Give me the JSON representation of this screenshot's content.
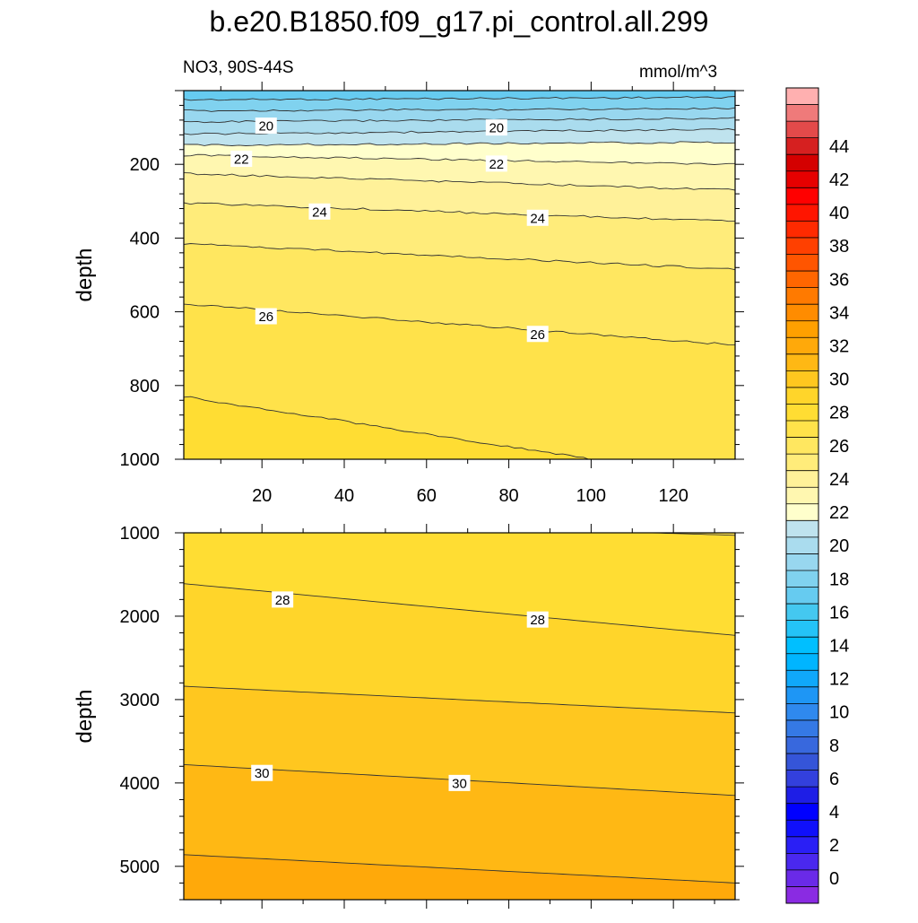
{
  "title": "b.e20.B1850.f09_g17.pi_control.all.299",
  "subtitle_left": "NO3, 90S-44S",
  "subtitle_right": "mmol/m^3",
  "chart_data": [
    {
      "type": "contour",
      "panel": "upper",
      "variable": "NO3",
      "units": "mmol/m^3",
      "xlabel": "",
      "ylabel": "depth",
      "xlim": [
        1,
        135
      ],
      "ylim": [
        1000,
        0
      ],
      "x_ticks": [
        20,
        40,
        60,
        80,
        100,
        120
      ],
      "y_ticks": [
        200,
        400,
        600,
        800,
        1000
      ],
      "contours": [
        {
          "level": 17,
          "depth_left": 25,
          "depth_right": 18
        },
        {
          "level": 18,
          "depth_left": 55,
          "depth_right": 48
        },
        {
          "level": 19,
          "depth_left": 85,
          "depth_right": 75
        },
        {
          "level": 20,
          "depth_left": 118,
          "depth_right": 105
        },
        {
          "level": 21,
          "depth_left": 148,
          "depth_right": 140
        },
        {
          "level": 22,
          "depth_left": 175,
          "depth_right": 200
        },
        {
          "level": 23,
          "depth_left": 225,
          "depth_right": 270
        },
        {
          "level": 24,
          "depth_left": 305,
          "depth_right": 355
        },
        {
          "level": 25,
          "depth_left": 415,
          "depth_right": 485
        },
        {
          "level": 26,
          "depth_left": 578,
          "depth_right": 690
        },
        {
          "level": 27,
          "depth_left": 830,
          "depth_right": 1060
        }
      ],
      "contour_labels": [
        {
          "text": "20",
          "x": 21,
          "depth": 95
        },
        {
          "text": "20",
          "x": 77,
          "depth": 100
        },
        {
          "text": "22",
          "x": 15,
          "depth": 185
        },
        {
          "text": "22",
          "x": 77,
          "depth": 198
        },
        {
          "text": "24",
          "x": 34,
          "depth": 328
        },
        {
          "text": "24",
          "x": 87,
          "depth": 345
        },
        {
          "text": "26",
          "x": 21,
          "depth": 612
        },
        {
          "text": "26",
          "x": 87,
          "depth": 660
        }
      ]
    },
    {
      "type": "contour",
      "panel": "lower",
      "variable": "NO3",
      "units": "mmol/m^3",
      "xlabel": "",
      "ylabel": "depth",
      "xlim": [
        1,
        135
      ],
      "ylim": [
        5400,
        1000
      ],
      "y_ticks": [
        1000,
        2000,
        3000,
        4000,
        5000
      ],
      "contours": [
        {
          "level": 27,
          "depth_left": 830,
          "depth_right": 1030
        },
        {
          "level": 28,
          "depth_left": 1610,
          "depth_right": 2230
        },
        {
          "level": 29,
          "depth_left": 2840,
          "depth_right": 3160
        },
        {
          "level": 30,
          "depth_left": 3780,
          "depth_right": 4150
        },
        {
          "level": 31,
          "depth_left": 4860,
          "depth_right": 5200
        }
      ],
      "contour_labels": [
        {
          "text": "28",
          "x": 25,
          "depth": 1800
        },
        {
          "text": "28",
          "x": 87,
          "depth": 2040
        },
        {
          "text": "30",
          "x": 20,
          "depth": 3880
        },
        {
          "text": "30",
          "x": 68,
          "depth": 4000
        }
      ]
    }
  ],
  "colorbar": {
    "labels": [
      "0",
      "2",
      "4",
      "6",
      "8",
      "10",
      "12",
      "14",
      "16",
      "18",
      "20",
      "22",
      "24",
      "26",
      "28",
      "30",
      "32",
      "34",
      "36",
      "38",
      "40",
      "42",
      "44"
    ],
    "levels": [
      -1,
      0,
      1,
      2,
      3,
      4,
      5,
      6,
      7,
      8,
      9,
      10,
      11,
      12,
      13,
      14,
      15,
      16,
      17,
      18,
      19,
      20,
      21,
      22,
      23,
      24,
      25,
      26,
      27,
      28,
      29,
      30,
      31,
      32,
      33,
      34,
      35,
      36,
      37,
      38,
      39,
      40,
      41,
      42,
      43,
      44,
      45,
      46
    ],
    "colors": [
      "#8a2be2",
      "#6a2ae8",
      "#4a28ef",
      "#2a1ff5",
      "#1010fa",
      "#0000ff",
      "#1e1ee6",
      "#3340dd",
      "#3555d8",
      "#3868dd",
      "#3579e5",
      "#2f89ee",
      "#1e96f5",
      "#10a8fa",
      "#00b5ff",
      "#00bfff",
      "#24c3f7",
      "#44c8f0",
      "#66cbf0",
      "#80d2ef",
      "#98d7ef",
      "#aadcee",
      "#bfe3ee",
      "#ffffcc",
      "#fff7b0",
      "#fff199",
      "#ffec7a",
      "#ffe760",
      "#ffe24a",
      "#ffdd33",
      "#ffd52a",
      "#ffc71f",
      "#ffb814",
      "#ffa90a",
      "#ffa000",
      "#ff8c00",
      "#ff7a00",
      "#ff6600",
      "#ff5500",
      "#ff4000",
      "#ff2a00",
      "#ff1500",
      "#ff0000",
      "#e60000",
      "#d40000",
      "#d62020",
      "#e34a4a",
      "#ef7a7a",
      "#ffb0b0"
    ]
  }
}
